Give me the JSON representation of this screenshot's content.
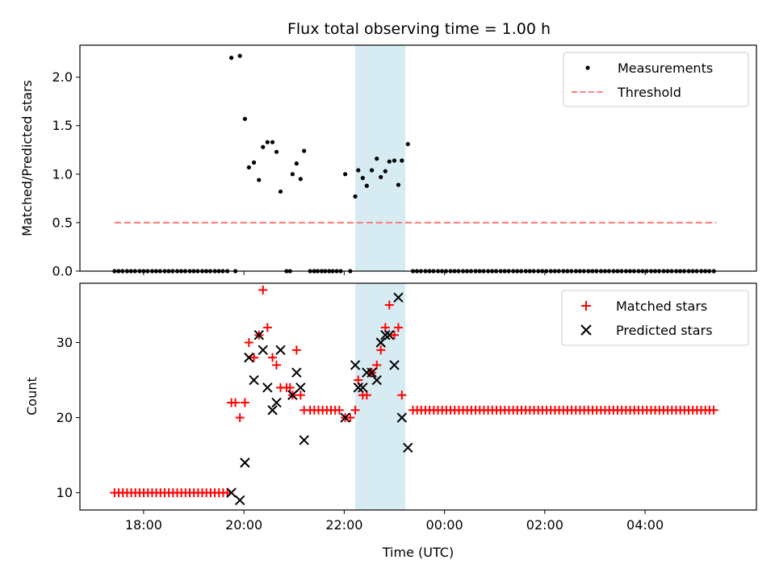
{
  "title": "Flux total observing time = 1.00 h",
  "colors": {
    "measurement": "#000000",
    "threshold": "#ff7f7f",
    "matched": "#ff0000",
    "predicted": "#000000",
    "span": "#add8e6"
  },
  "chart_data": [
    {
      "type": "scatter",
      "panel": "top",
      "ylabel": "Matched/Predicted stars",
      "xlabel": "",
      "ylim": [
        0,
        2.33
      ],
      "yticks": [
        0.0,
        0.5,
        1.0,
        1.5,
        2.0
      ],
      "ytick_labels": [
        "0.0",
        "0.5",
        "1.0",
        "1.5",
        "2.0"
      ],
      "shaded_span": [
        22.22,
        23.22
      ],
      "legend": {
        "placement": "top-right",
        "entries": [
          "Measurements",
          "Threshold"
        ]
      },
      "threshold": {
        "name": "Threshold",
        "value": 0.5,
        "x_range": [
          17.42,
          29.42
        ],
        "style": "dashed"
      },
      "series": [
        {
          "name": "Measurements",
          "points": [
            [
              17.42,
              0
            ],
            [
              17.5,
              0
            ],
            [
              17.58,
              0
            ],
            [
              17.67,
              0
            ],
            [
              17.75,
              0
            ],
            [
              17.83,
              0
            ],
            [
              17.92,
              0
            ],
            [
              18.0,
              0
            ],
            [
              18.08,
              0
            ],
            [
              18.17,
              0
            ],
            [
              18.25,
              0
            ],
            [
              18.33,
              0
            ],
            [
              18.42,
              0
            ],
            [
              18.5,
              0
            ],
            [
              18.58,
              0
            ],
            [
              18.67,
              0
            ],
            [
              18.75,
              0
            ],
            [
              18.83,
              0
            ],
            [
              18.92,
              0
            ],
            [
              19.0,
              0
            ],
            [
              19.08,
              0
            ],
            [
              19.17,
              0
            ],
            [
              19.25,
              0
            ],
            [
              19.33,
              0
            ],
            [
              19.42,
              0
            ],
            [
              19.5,
              0
            ],
            [
              19.58,
              0
            ],
            [
              19.67,
              0
            ],
            [
              19.75,
              2.2
            ],
            [
              19.83,
              0
            ],
            [
              19.92,
              2.22
            ],
            [
              20.02,
              1.57
            ],
            [
              20.1,
              1.07
            ],
            [
              20.2,
              1.12
            ],
            [
              20.3,
              0.94
            ],
            [
              20.38,
              1.28
            ],
            [
              20.47,
              1.33
            ],
            [
              20.57,
              1.33
            ],
            [
              20.65,
              1.23
            ],
            [
              20.73,
              0.82
            ],
            [
              20.85,
              0
            ],
            [
              20.92,
              0
            ],
            [
              20.97,
              1.0
            ],
            [
              21.05,
              1.11
            ],
            [
              21.13,
              0.95
            ],
            [
              21.2,
              1.24
            ],
            [
              21.32,
              0
            ],
            [
              21.4,
              0
            ],
            [
              21.47,
              0
            ],
            [
              21.55,
              0
            ],
            [
              21.62,
              0
            ],
            [
              21.7,
              0
            ],
            [
              21.77,
              0
            ],
            [
              21.85,
              0
            ],
            [
              21.93,
              0
            ],
            [
              22.02,
              1.0
            ],
            [
              22.12,
              0
            ],
            [
              22.22,
              0.77
            ],
            [
              22.28,
              1.04
            ],
            [
              22.37,
              0.96
            ],
            [
              22.45,
              0.88
            ],
            [
              22.55,
              1.04
            ],
            [
              22.65,
              1.16
            ],
            [
              22.73,
              0.97
            ],
            [
              22.82,
              1.03
            ],
            [
              22.9,
              1.13
            ],
            [
              23.0,
              1.14
            ],
            [
              23.08,
              0.89
            ],
            [
              23.15,
              1.14
            ],
            [
              23.27,
              1.31
            ],
            [
              23.37,
              0
            ],
            [
              23.45,
              0
            ],
            [
              23.53,
              0
            ],
            [
              23.62,
              0
            ],
            [
              23.7,
              0
            ],
            [
              23.78,
              0
            ],
            [
              23.87,
              0
            ],
            [
              23.95,
              0
            ],
            [
              24.03,
              0
            ],
            [
              24.12,
              0
            ],
            [
              24.2,
              0
            ],
            [
              24.28,
              0
            ],
            [
              24.37,
              0
            ],
            [
              24.45,
              0
            ],
            [
              24.53,
              0
            ],
            [
              24.62,
              0
            ],
            [
              24.7,
              0
            ],
            [
              24.78,
              0
            ],
            [
              24.87,
              0
            ],
            [
              24.95,
              0
            ],
            [
              25.03,
              0
            ],
            [
              25.12,
              0
            ],
            [
              25.2,
              0
            ],
            [
              25.28,
              0
            ],
            [
              25.37,
              0
            ],
            [
              25.45,
              0
            ],
            [
              25.53,
              0
            ],
            [
              25.62,
              0
            ],
            [
              25.7,
              0
            ],
            [
              25.78,
              0
            ],
            [
              25.87,
              0
            ],
            [
              25.95,
              0
            ],
            [
              26.03,
              0
            ],
            [
              26.12,
              0
            ],
            [
              26.2,
              0
            ],
            [
              26.28,
              0
            ],
            [
              26.37,
              0
            ],
            [
              26.45,
              0
            ],
            [
              26.53,
              0
            ],
            [
              26.62,
              0
            ],
            [
              26.7,
              0
            ],
            [
              26.78,
              0
            ],
            [
              26.87,
              0
            ],
            [
              26.95,
              0
            ],
            [
              27.03,
              0
            ],
            [
              27.12,
              0
            ],
            [
              27.2,
              0
            ],
            [
              27.28,
              0
            ],
            [
              27.37,
              0
            ],
            [
              27.45,
              0
            ],
            [
              27.53,
              0
            ],
            [
              27.62,
              0
            ],
            [
              27.7,
              0
            ],
            [
              27.78,
              0
            ],
            [
              27.87,
              0
            ],
            [
              27.95,
              0
            ],
            [
              28.03,
              0
            ],
            [
              28.12,
              0
            ],
            [
              28.2,
              0
            ],
            [
              28.28,
              0
            ],
            [
              28.37,
              0
            ],
            [
              28.45,
              0
            ],
            [
              28.53,
              0
            ],
            [
              28.62,
              0
            ],
            [
              28.7,
              0
            ],
            [
              28.78,
              0
            ],
            [
              28.87,
              0
            ],
            [
              28.95,
              0
            ],
            [
              29.03,
              0
            ],
            [
              29.12,
              0
            ],
            [
              29.2,
              0
            ],
            [
              29.28,
              0
            ],
            [
              29.37,
              0
            ]
          ]
        }
      ]
    },
    {
      "type": "scatter",
      "panel": "bottom",
      "ylabel": "Count",
      "xlabel": "Time (UTC)",
      "xlim": [
        16.73,
        30.22
      ],
      "ylim": [
        7.7,
        37.9
      ],
      "yticks": [
        10,
        20,
        30
      ],
      "ytick_labels": [
        "10",
        "20",
        "30"
      ],
      "xticks": [
        18,
        20,
        22,
        24,
        26,
        28
      ],
      "xtick_labels": [
        "18:00",
        "20:00",
        "22:00",
        "00:00",
        "02:00",
        "04:00"
      ],
      "shaded_span": [
        22.22,
        23.22
      ],
      "legend": {
        "placement": "top-right",
        "entries": [
          "Matched stars",
          "Predicted stars"
        ]
      },
      "series": [
        {
          "name": "Matched stars",
          "marker": "+",
          "const_runs": [
            {
              "from": 17.42,
              "to": 19.67,
              "step": 0.0833,
              "y": 10
            },
            {
              "from": 21.32,
              "to": 21.93,
              "step": 0.0833,
              "y": 21
            },
            {
              "from": 23.37,
              "to": 29.37,
              "step": 0.0833,
              "y": 21
            }
          ],
          "points": [
            [
              19.75,
              22
            ],
            [
              19.83,
              22
            ],
            [
              19.92,
              20
            ],
            [
              20.02,
              22
            ],
            [
              20.1,
              30
            ],
            [
              20.2,
              28
            ],
            [
              20.3,
              31
            ],
            [
              20.38,
              37
            ],
            [
              20.47,
              32
            ],
            [
              20.57,
              28
            ],
            [
              20.65,
              27
            ],
            [
              20.73,
              24
            ],
            [
              20.85,
              24
            ],
            [
              20.92,
              24
            ],
            [
              20.97,
              23
            ],
            [
              21.05,
              29
            ],
            [
              21.13,
              23
            ],
            [
              21.2,
              21
            ],
            [
              22.02,
              20
            ],
            [
              22.12,
              20
            ],
            [
              22.22,
              21
            ],
            [
              22.28,
              25
            ],
            [
              22.37,
              23
            ],
            [
              22.45,
              23
            ],
            [
              22.55,
              26
            ],
            [
              22.65,
              27
            ],
            [
              22.73,
              29
            ],
            [
              22.82,
              32
            ],
            [
              22.9,
              35
            ],
            [
              23.0,
              31
            ],
            [
              23.08,
              32
            ],
            [
              23.15,
              23
            ]
          ]
        },
        {
          "name": "Predicted stars",
          "marker": "x",
          "points": [
            [
              19.75,
              10
            ],
            [
              19.92,
              9
            ],
            [
              20.02,
              14
            ],
            [
              20.1,
              28
            ],
            [
              20.2,
              25
            ],
            [
              20.3,
              31
            ],
            [
              20.38,
              29
            ],
            [
              20.47,
              24
            ],
            [
              20.57,
              21
            ],
            [
              20.65,
              22
            ],
            [
              20.73,
              29
            ],
            [
              20.97,
              23
            ],
            [
              21.05,
              26
            ],
            [
              21.13,
              24
            ],
            [
              21.2,
              17
            ],
            [
              22.02,
              20
            ],
            [
              22.22,
              27
            ],
            [
              22.28,
              24
            ],
            [
              22.37,
              24
            ],
            [
              22.45,
              26
            ],
            [
              22.55,
              26
            ],
            [
              22.65,
              25
            ],
            [
              22.73,
              30
            ],
            [
              22.82,
              31
            ],
            [
              22.9,
              31
            ],
            [
              23.0,
              27
            ],
            [
              23.08,
              36
            ],
            [
              23.15,
              20
            ],
            [
              23.27,
              16
            ]
          ]
        }
      ]
    }
  ]
}
